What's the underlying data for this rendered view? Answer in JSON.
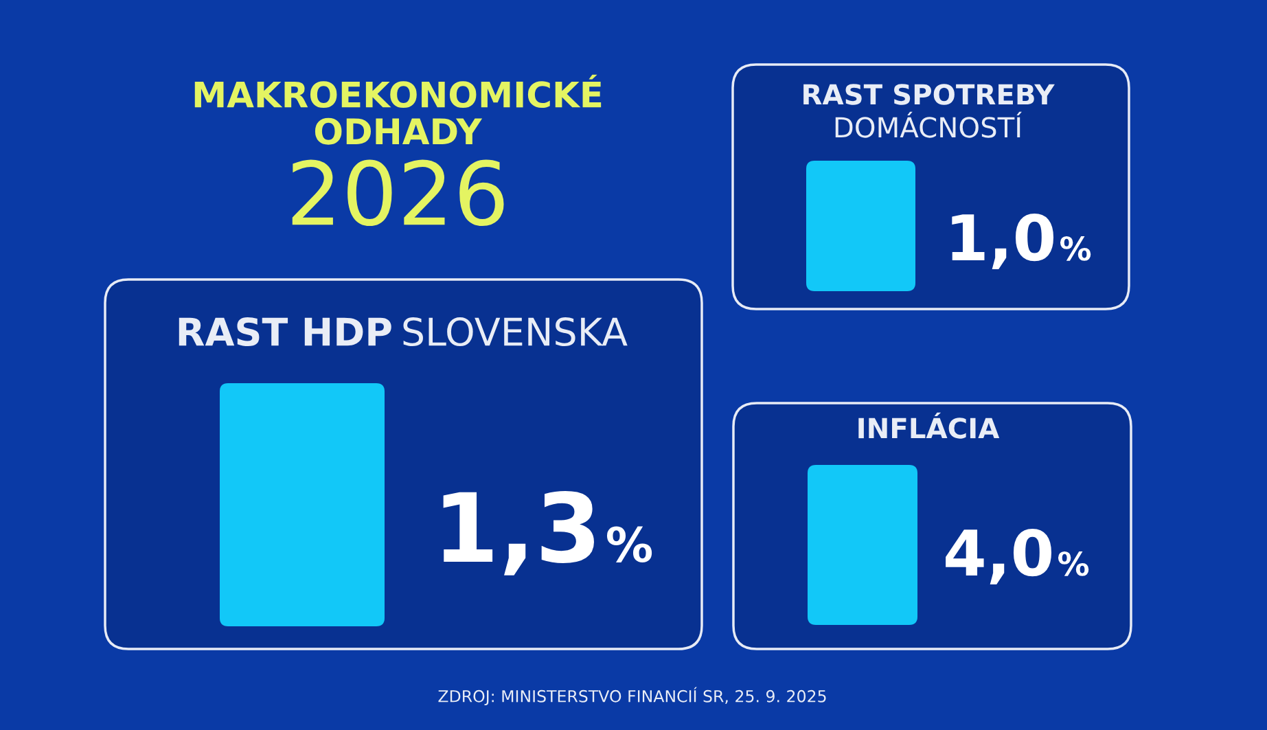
{
  "chart_data": [
    {
      "type": "other",
      "title": "MAKROEKONOMICKÉ\nODHADY",
      "subtitle": "2026",
      "annotations": [
        "ZDROJ: MINISTERSTVO FINANCIÍ SR, 25. 9. 2025"
      ]
    },
    {
      "type": "other",
      "title": "RAST SPOTREBY",
      "subtitle": "DOMÁCNOSTÍ",
      "values": [
        1.0
      ],
      "value_labels": [
        "1,0 %"
      ]
    },
    {
      "type": "other",
      "title": "RAST HDP",
      "subtitle": "SLOVENSKA",
      "values": [
        1.3
      ],
      "value_labels": [
        "1,3 %"
      ]
    },
    {
      "type": "other",
      "title": "INFLÁCIA",
      "values": [
        4.0
      ],
      "value_labels": [
        "4,0 %"
      ]
    }
  ]
}
